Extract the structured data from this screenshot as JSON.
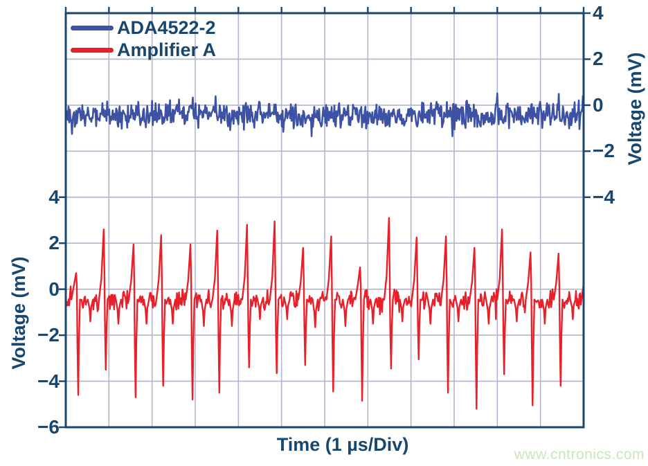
{
  "colors": {
    "navy_text_and_frame": "#17466f",
    "grid_line": "#b2b5cd",
    "blue_trace": "#3d52a4",
    "red_trace": "#e8202a",
    "watermark_green": "#c9e5ba",
    "background": "#ffffff"
  },
  "watermark": "www.cntronics.com",
  "chart_data": {
    "type": "line",
    "title": "",
    "x_axis": {
      "title": "Time (1 µs/Div)",
      "divisions": 12,
      "us_per_div": 1
    },
    "left_axis": {
      "title": "Voltage (mV)",
      "ticks": [
        "4",
        "2",
        "0",
        "−2",
        "−4",
        "−6"
      ],
      "mV_per_div": 2,
      "bottom_mV": -6
    },
    "right_axis": {
      "title": "Voltage (mV)",
      "ticks": [
        "4",
        "2",
        "0",
        "−2",
        "−4"
      ],
      "mV_per_div": 2,
      "top_mV": 4
    },
    "grid": {
      "rows": 9,
      "cols": 12,
      "visible": true
    },
    "legend": [
      {
        "label": "ADA4522-2",
        "color": "#3d52a4"
      },
      {
        "label": "Amplifier A",
        "color": "#e8202a"
      }
    ],
    "series": [
      {
        "name": "ADA4522-2",
        "axis": "right",
        "color": "#3d52a4",
        "baseline_mV": -0.4,
        "noise_pp_mV": 1.1,
        "occasional_peak_mV": 0.55,
        "description": "flat broadband noise band, no spikes"
      },
      {
        "name": "Amplifier A",
        "axis": "left",
        "color": "#e8202a",
        "baseline_mV": -0.45,
        "noise_pp_mV": 0.9,
        "spike_period_us": 0.66,
        "spike_events_t_up_down_mV": [
          [
            0.24,
            0.7,
            -4.6
          ],
          [
            0.88,
            2.6,
            -3.5
          ],
          [
            1.57,
            1.95,
            -4.7
          ],
          [
            2.21,
            2.35,
            -4.2
          ],
          [
            2.89,
            1.95,
            -4.8
          ],
          [
            3.51,
            2.55,
            -4.5
          ],
          [
            4.2,
            2.8,
            -3.4
          ],
          [
            4.84,
            2.95,
            -3.65
          ],
          [
            5.5,
            1.8,
            -3.3
          ],
          [
            6.15,
            2.3,
            -4.45
          ],
          [
            6.82,
            0.95,
            -4.85
          ],
          [
            7.49,
            3.1,
            -3.45
          ],
          [
            8.13,
            2.25,
            -3.05
          ],
          [
            8.81,
            2.3,
            -4.5
          ],
          [
            9.47,
            1.8,
            -5.2
          ],
          [
            10.11,
            2.6,
            -3.7
          ],
          [
            10.77,
            1.6,
            -5.05
          ],
          [
            11.42,
            1.55,
            -4.2
          ],
          [
            12.06,
            1.6,
            -4.4
          ]
        ],
        "minor_dips_t_mV": [
          [
            0.57,
            -1.4
          ],
          [
            1.22,
            -1.5
          ],
          [
            1.87,
            -1.5
          ],
          [
            2.48,
            -1.5
          ],
          [
            3.2,
            -1.6
          ],
          [
            3.85,
            -1.6
          ],
          [
            4.5,
            -1.3
          ],
          [
            5.13,
            -1.3
          ],
          [
            5.78,
            -1.65
          ],
          [
            6.48,
            -1.6
          ],
          [
            7.12,
            -1.5
          ],
          [
            7.8,
            -1.4
          ],
          [
            8.45,
            -1.5
          ],
          [
            9.1,
            -1.4
          ],
          [
            9.8,
            -1.5
          ],
          [
            10.45,
            -1.4
          ],
          [
            11.1,
            -1.5
          ],
          [
            11.75,
            -1.3
          ]
        ]
      }
    ]
  }
}
